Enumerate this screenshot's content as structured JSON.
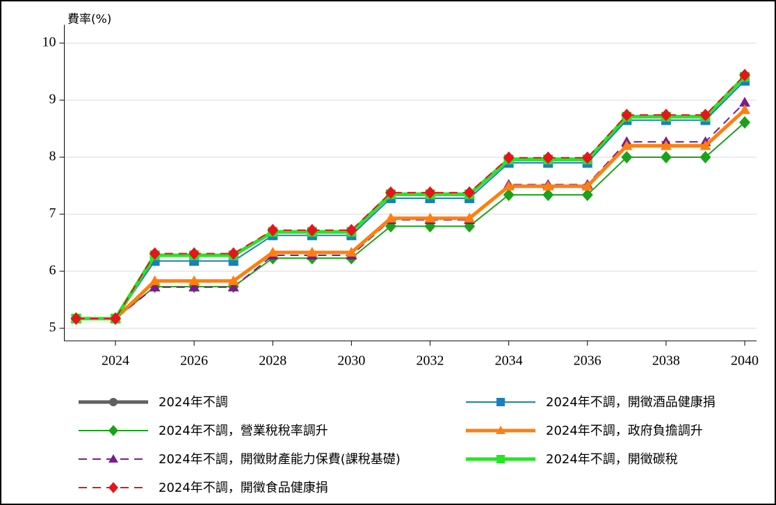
{
  "chart_data": {
    "type": "line",
    "y_label": "費率(%)",
    "x": [
      2023,
      2024,
      2025,
      2026,
      2027,
      2028,
      2029,
      2030,
      2031,
      2032,
      2033,
      2034,
      2035,
      2036,
      2037,
      2038,
      2039,
      2040
    ],
    "xlim": [
      2022.7,
      2040.3
    ],
    "xticks": [
      2024,
      2026,
      2028,
      2030,
      2032,
      2034,
      2036,
      2038,
      2040
    ],
    "ylim": [
      4.78,
      10.2
    ],
    "yticks": [
      5,
      6,
      7,
      8,
      9,
      10
    ],
    "grid": true,
    "series": [
      {
        "name": "2024年不調",
        "color": "#606060",
        "marker": "circle",
        "dash": false,
        "width": 5,
        "values": [
          5.17,
          5.17,
          6.28,
          6.28,
          6.28,
          6.69,
          6.69,
          6.69,
          7.35,
          7.35,
          7.35,
          7.96,
          7.96,
          7.96,
          8.71,
          8.71,
          8.71,
          9.41
        ]
      },
      {
        "name": "2024年不調，營業稅稅率調升",
        "color": "#1aa31a",
        "marker": "diamond",
        "dash": false,
        "width": 2,
        "values": [
          5.17,
          5.17,
          5.73,
          5.73,
          5.73,
          6.23,
          6.23,
          6.23,
          6.79,
          6.79,
          6.79,
          7.34,
          7.34,
          7.34,
          8.0,
          8.0,
          8.0,
          8.61
        ]
      },
      {
        "name": "2024年不調，開徵財產能力保費(課稅基礎)",
        "color": "#7b1c8e",
        "marker": "triangle",
        "dash": true,
        "width": 2,
        "values": [
          5.17,
          5.17,
          5.72,
          5.72,
          5.72,
          6.28,
          6.28,
          6.28,
          6.9,
          6.9,
          6.9,
          7.52,
          7.52,
          7.52,
          8.27,
          8.27,
          8.27,
          8.96
        ]
      },
      {
        "name": "2024年不調，開徵食品健康捐",
        "color": "#e8141c",
        "marker": "diamond",
        "dash": true,
        "width": 2,
        "values": [
          5.17,
          5.17,
          6.31,
          6.31,
          6.31,
          6.72,
          6.72,
          6.72,
          7.38,
          7.38,
          7.38,
          7.99,
          7.99,
          7.99,
          8.74,
          8.74,
          8.74,
          9.44
        ]
      },
      {
        "name": "2024年不調，開徵酒品健康捐",
        "color": "#1a7fbf",
        "marker": "square",
        "dash": false,
        "width": 2,
        "values": [
          5.17,
          5.17,
          6.18,
          6.18,
          6.18,
          6.63,
          6.63,
          6.63,
          7.28,
          7.28,
          7.28,
          7.9,
          7.9,
          7.9,
          8.65,
          8.65,
          8.65,
          9.34
        ]
      },
      {
        "name": "2024年不調，政府負擔調升",
        "color": "#ff7f0e",
        "marker": "triangle",
        "dash": false,
        "width": 5,
        "values": [
          5.17,
          5.17,
          5.83,
          5.83,
          5.83,
          6.33,
          6.33,
          6.33,
          6.93,
          6.93,
          6.93,
          7.49,
          7.49,
          7.49,
          8.2,
          8.2,
          8.2,
          8.83
        ]
      },
      {
        "name": "2024年不調，開徵碳稅",
        "color": "#22e822",
        "marker": "square",
        "dash": false,
        "width": 5,
        "values": [
          5.17,
          5.17,
          6.28,
          6.28,
          6.28,
          6.69,
          6.69,
          6.69,
          7.35,
          7.35,
          7.35,
          7.96,
          7.96,
          7.96,
          8.71,
          8.71,
          8.71,
          9.41
        ]
      }
    ]
  }
}
